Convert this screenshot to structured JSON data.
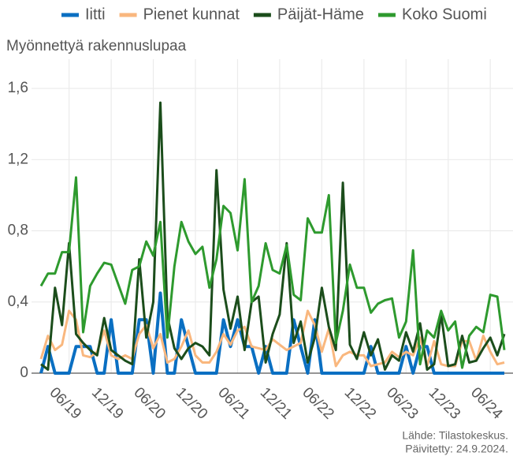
{
  "chart_data": {
    "type": "line",
    "y_label": "Myönnettyä rakennuslupaa",
    "source": "Lähde: Tilastokeskus.",
    "updated": "Päivitetty: 24.9.2024.",
    "categories": [
      null,
      null,
      null,
      null,
      "06/19",
      null,
      null,
      null,
      null,
      null,
      "12/19",
      null,
      null,
      null,
      null,
      null,
      "06/20",
      null,
      null,
      null,
      null,
      null,
      "12/20",
      null,
      null,
      null,
      null,
      null,
      "06/21",
      null,
      null,
      null,
      null,
      null,
      "12/21",
      null,
      null,
      null,
      null,
      null,
      "06/22",
      null,
      null,
      null,
      null,
      null,
      "12/22",
      null,
      null,
      null,
      null,
      null,
      "06/23",
      null,
      null,
      null,
      null,
      null,
      "12/23",
      null,
      null,
      null,
      null,
      null,
      "06/24",
      null,
      null
    ],
    "series": [
      {
        "name": "Iitti",
        "color": "#0a6fc2",
        "values": [
          0,
          0.15,
          0,
          0,
          0,
          0.15,
          0.15,
          0.15,
          0,
          0,
          0.3,
          0,
          0,
          0,
          0.3,
          0.3,
          0,
          0.45,
          0,
          0,
          0.3,
          0.15,
          0,
          0,
          0,
          0,
          0.3,
          0.15,
          0.3,
          0.15,
          0.15,
          0,
          0.15,
          0,
          0,
          0,
          0.3,
          0.15,
          0,
          0.3,
          0,
          0,
          0,
          0,
          0,
          0,
          0,
          0.15,
          0,
          0,
          0,
          0,
          0.15,
          0,
          0.15,
          0.15,
          0,
          0,
          0,
          0,
          0,
          0,
          0,
          0,
          0,
          0,
          0
        ]
      },
      {
        "name": "Pienet kunnat",
        "color": "#f9b77e",
        "values": [
          0.08,
          0.21,
          0.13,
          0.16,
          0.35,
          0.3,
          0.1,
          0.09,
          0.12,
          0.24,
          0.1,
          0.08,
          0.1,
          0.08,
          0.22,
          0.27,
          0.14,
          0.22,
          0.06,
          0.08,
          0.15,
          0.24,
          0.1,
          0.06,
          0.06,
          0.12,
          0.22,
          0.16,
          0.24,
          0.26,
          0.15,
          0.14,
          0.13,
          0.19,
          0.16,
          0.13,
          0.15,
          0.17,
          0.35,
          0.27,
          0.12,
          0.25,
          0.04,
          0.1,
          0.12,
          0.1,
          0.1,
          0.04,
          0.05,
          0.06,
          0.12,
          0.09,
          0.12,
          0.1,
          0.2,
          0.04,
          0.18,
          0.05,
          0.04,
          0.04,
          0.18,
          0.18,
          0.07,
          0.21,
          0.12,
          0.05,
          0.06
        ]
      },
      {
        "name": "Päijät-Häme",
        "color": "#1b4d1b",
        "values": [
          0.05,
          0.02,
          0.48,
          0.27,
          0.73,
          0.22,
          0.17,
          0.13,
          0.1,
          0.31,
          0.13,
          0.1,
          0.07,
          0.05,
          0.64,
          0.2,
          0.4,
          1.52,
          0.32,
          0.14,
          0.08,
          0.14,
          0.17,
          0.15,
          0.1,
          1.14,
          0.47,
          0.25,
          0.43,
          0.13,
          0.4,
          0.43,
          0.06,
          0.22,
          0.33,
          0.73,
          0.17,
          0.29,
          0.06,
          0.2,
          0.48,
          0.26,
          0.13,
          1.07,
          0.16,
          0.08,
          0.23,
          0.1,
          0.19,
          0.02,
          0.1,
          0.07,
          0.23,
          0.12,
          0.28,
          0.02,
          0.05,
          0.33,
          0.04,
          0.05,
          0.21,
          0.06,
          0.07,
          0.14,
          0.2,
          0.1,
          0.22
        ]
      },
      {
        "name": "Koko Suomi",
        "color": "#2e9a2e",
        "values": [
          0.49,
          0.56,
          0.56,
          0.68,
          0.68,
          1.1,
          0.23,
          0.49,
          0.56,
          0.62,
          0.61,
          0.5,
          0.39,
          0.58,
          0.6,
          0.74,
          0.66,
          0.85,
          0.2,
          0.6,
          0.85,
          0.74,
          0.67,
          0.71,
          0.48,
          0.64,
          0.94,
          0.9,
          0.69,
          1.09,
          0.4,
          0.49,
          0.73,
          0.58,
          0.56,
          0.72,
          0.44,
          0.41,
          0.87,
          0.79,
          0.79,
          1.0,
          0.17,
          0.35,
          0.61,
          0.48,
          0.48,
          0.34,
          0.39,
          0.41,
          0.42,
          0.2,
          0.29,
          0.69,
          0.05,
          0.24,
          0.2,
          0.35,
          0.24,
          0.29,
          0.03,
          0.21,
          0.26,
          0.23,
          0.44,
          0.43,
          0.13
        ]
      }
    ],
    "ylim": [
      0,
      1.72
    ],
    "yticks": [
      0,
      {
        "value": 0.4,
        "label": "0,4"
      },
      {
        "value": 0.8,
        "label": "0,8"
      },
      {
        "value": 1.2,
        "label": "1,2"
      },
      {
        "value": 1.6,
        "label": "1,6"
      }
    ],
    "grid": true,
    "legend": "top"
  }
}
